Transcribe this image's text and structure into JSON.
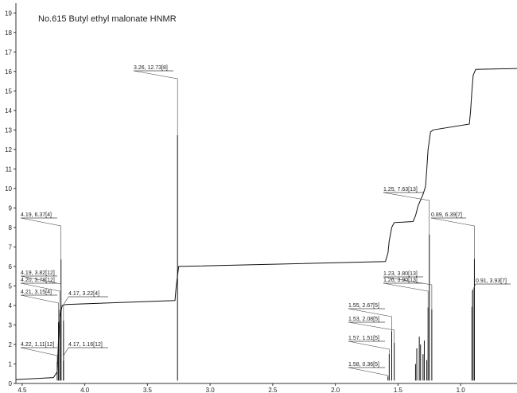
{
  "chart_data": {
    "type": "line",
    "title": "No.615 Butyl ethyl malonate HNMR",
    "xlabel": "",
    "ylabel": "",
    "x_reversed": true,
    "xlim": [
      4.55,
      0.55
    ],
    "ylim": [
      0,
      19.5
    ],
    "x_ticks": [
      {
        "value": 4.5,
        "label": "4.5"
      },
      {
        "value": 4.0,
        "label": "4.0"
      },
      {
        "value": 3.5,
        "label": "3.5"
      },
      {
        "value": 3.0,
        "label": "3.0"
      },
      {
        "value": 2.5,
        "label": "2.5"
      },
      {
        "value": 2.0,
        "label": "2.0"
      },
      {
        "value": 1.5,
        "label": "1.5"
      },
      {
        "value": 1.0,
        "label": "1.0"
      }
    ],
    "y_ticks": [
      {
        "value": 0,
        "label": "0"
      },
      {
        "value": 1,
        "label": "1"
      },
      {
        "value": 2,
        "label": "2"
      },
      {
        "value": 3,
        "label": "3"
      },
      {
        "value": 4,
        "label": "4"
      },
      {
        "value": 5,
        "label": "5"
      },
      {
        "value": 6,
        "label": "6"
      },
      {
        "value": 7,
        "label": "7"
      },
      {
        "value": 8,
        "label": "8"
      },
      {
        "value": 9,
        "label": "9"
      },
      {
        "value": 10,
        "label": "10"
      },
      {
        "value": 11,
        "label": "11"
      },
      {
        "value": 12,
        "label": "12"
      },
      {
        "value": 13,
        "label": "13"
      },
      {
        "value": 14,
        "label": "14"
      },
      {
        "value": 15,
        "label": "15"
      },
      {
        "value": 16,
        "label": "16"
      },
      {
        "value": 17,
        "label": "17"
      },
      {
        "value": 18,
        "label": "18"
      },
      {
        "value": 19,
        "label": "19"
      }
    ],
    "peaks": [
      {
        "x": 4.22,
        "y": 1.11,
        "label": "4.22, 1.11[12]"
      },
      {
        "x": 4.21,
        "y": 3.15,
        "label": "4.21, 3.15[4]"
      },
      {
        "x": 4.2,
        "y": 3.78,
        "label": "4.20, 3.78[12]"
      },
      {
        "x": 4.19,
        "y": 3.82,
        "label": "4.19, 3.82[12]"
      },
      {
        "x": 4.19,
        "y": 6.37,
        "label": "4.19, 6.37[4]"
      },
      {
        "x": 4.17,
        "y": 3.22,
        "label": "4.17, 3.22[4]"
      },
      {
        "x": 4.17,
        "y": 1.16,
        "label": "4.17, 1.16[12]"
      },
      {
        "x": 3.26,
        "y": 12.73,
        "label": "3.26, 12.73[8]"
      },
      {
        "x": 1.58,
        "y": 0.36,
        "label": "1.58, 0.36[5]"
      },
      {
        "x": 1.57,
        "y": 1.51,
        "label": "1.57, 1.51[5]"
      },
      {
        "x": 1.55,
        "y": 2.67,
        "label": "1.55, 2.67[5]"
      },
      {
        "x": 1.53,
        "y": 2.08,
        "label": "1.53, 2.08[5]"
      },
      {
        "x": 1.26,
        "y": 3.9,
        "label": "1.26, 3.90[13]"
      },
      {
        "x": 1.25,
        "y": 7.63,
        "label": "1.25, 7.63[13]"
      },
      {
        "x": 1.23,
        "y": 3.8,
        "label": "1.23, 3.80[13]"
      },
      {
        "x": 0.91,
        "y": 3.93,
        "label": "0.91, 3.93[7]"
      },
      {
        "x": 0.89,
        "y": 6.39,
        "label": "0.89, 6.39[7]"
      }
    ],
    "unlabeled_peaks": [
      {
        "x": 1.36,
        "y": 1.0
      },
      {
        "x": 1.35,
        "y": 1.8
      },
      {
        "x": 1.33,
        "y": 2.4
      },
      {
        "x": 1.32,
        "y": 2.0
      },
      {
        "x": 1.3,
        "y": 1.5
      },
      {
        "x": 1.29,
        "y": 2.2
      },
      {
        "x": 1.27,
        "y": 1.2
      },
      {
        "x": 0.9,
        "y": 4.8
      }
    ],
    "integral_curve": [
      [
        4.55,
        0.2
      ],
      [
        4.25,
        0.3
      ],
      [
        4.22,
        0.6
      ],
      [
        4.21,
        2.2
      ],
      [
        4.2,
        3.4
      ],
      [
        4.18,
        4.0
      ],
      [
        4.15,
        4.05
      ],
      [
        3.28,
        4.25
      ],
      [
        3.27,
        5.0
      ],
      [
        3.25,
        6.0
      ],
      [
        1.6,
        6.25
      ],
      [
        1.58,
        6.7
      ],
      [
        1.57,
        7.3
      ],
      [
        1.55,
        8.0
      ],
      [
        1.53,
        8.25
      ],
      [
        1.38,
        8.3
      ],
      [
        1.36,
        8.6
      ],
      [
        1.34,
        9.1
      ],
      [
        1.32,
        9.4
      ],
      [
        1.3,
        9.7
      ],
      [
        1.28,
        10.1
      ],
      [
        1.27,
        11.0
      ],
      [
        1.26,
        12.0
      ],
      [
        1.24,
        12.9
      ],
      [
        1.22,
        13.0
      ],
      [
        0.93,
        13.3
      ],
      [
        0.92,
        14.0
      ],
      [
        0.91,
        15.0
      ],
      [
        0.9,
        15.8
      ],
      [
        0.88,
        16.1
      ],
      [
        0.55,
        16.15
      ]
    ]
  }
}
